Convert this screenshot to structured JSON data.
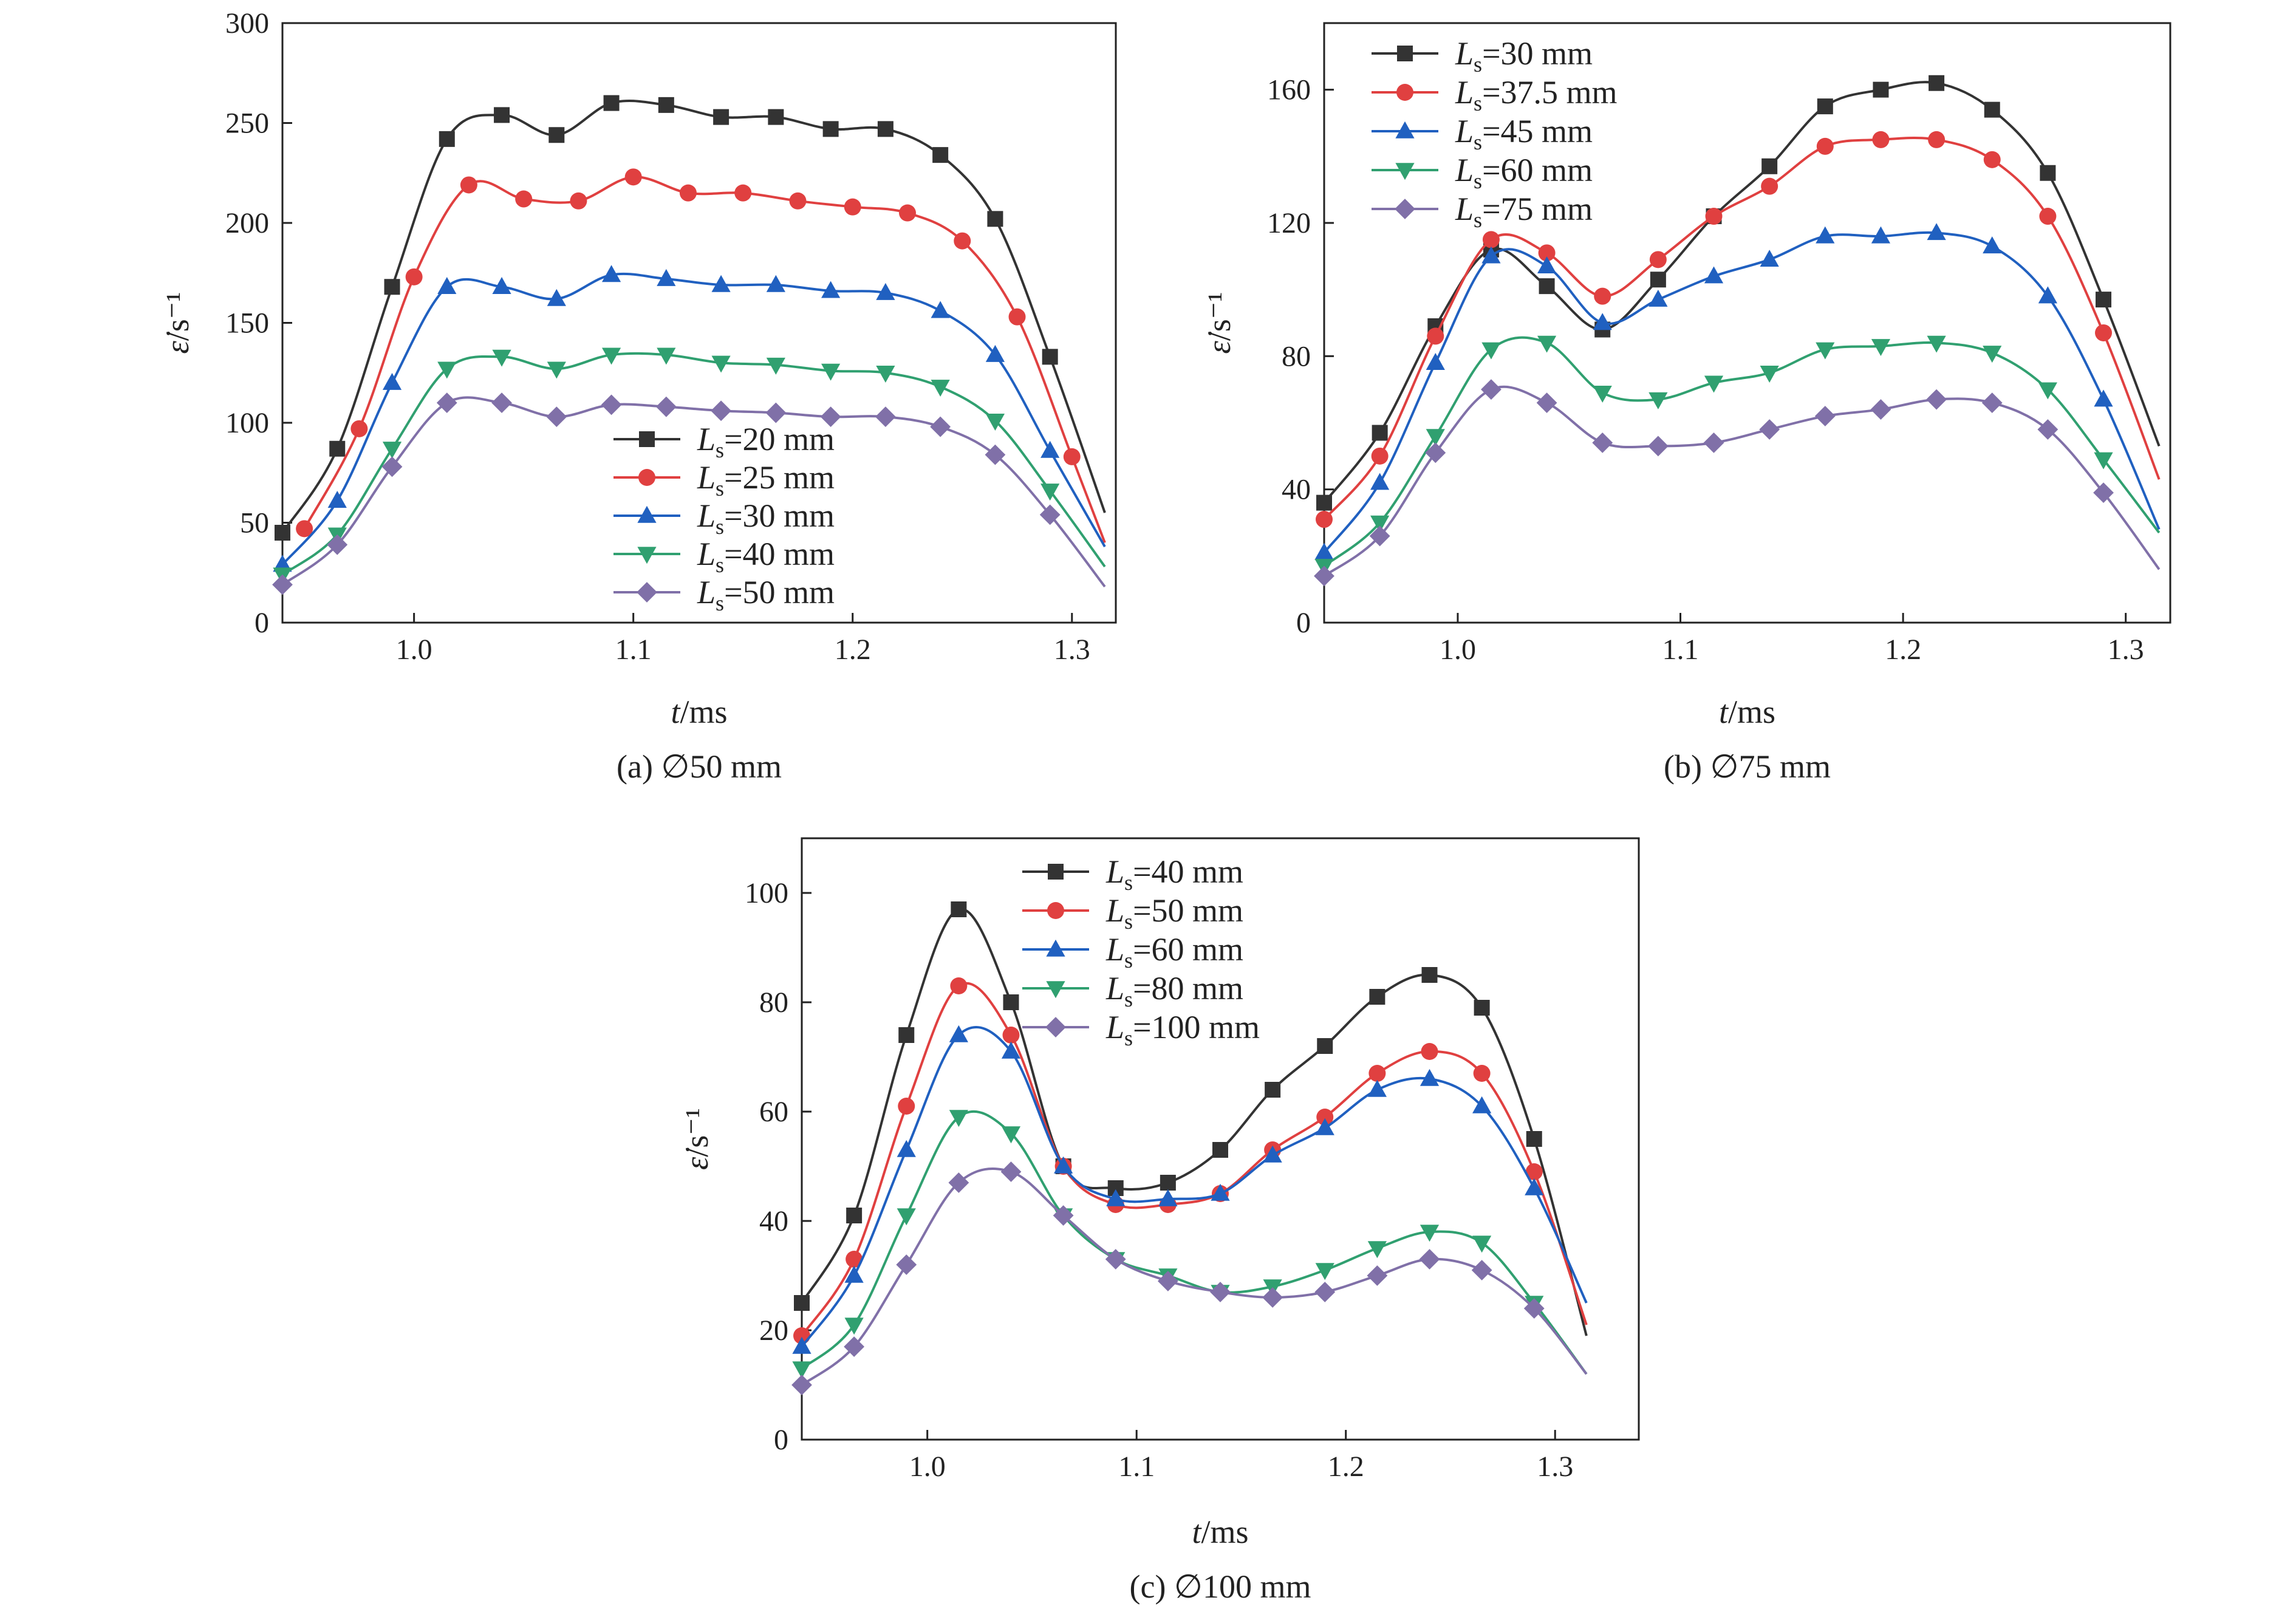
{
  "chart_data": [
    {
      "type": "line",
      "caption": "(a) ∅50 mm",
      "xlabel": "t/ms",
      "ylabel": "ε̇/s⁻¹",
      "xlim": [
        0.94,
        1.32
      ],
      "ylim": [
        0,
        300
      ],
      "xticks": [
        1.0,
        1.1,
        1.2,
        1.3
      ],
      "yticks": [
        0,
        50,
        100,
        150,
        200,
        250,
        300
      ],
      "legend": "center-bottom",
      "series": [
        {
          "name": "Ls=20 mm",
          "marker": "square",
          "color": "#333333",
          "x": [
            0.94,
            0.965,
            0.99,
            1.015,
            1.04,
            1.065,
            1.09,
            1.115,
            1.14,
            1.165,
            1.19,
            1.215,
            1.24,
            1.265,
            1.29,
            1.315
          ],
          "y": [
            45,
            87,
            168,
            242,
            254,
            244,
            260,
            259,
            253,
            253,
            247,
            247,
            234,
            202,
            133,
            55
          ]
        },
        {
          "name": "Ls=25 mm",
          "marker": "circle",
          "color": "#e04040",
          "x": [
            0.95,
            0.975,
            1.0,
            1.025,
            1.05,
            1.075,
            1.1,
            1.125,
            1.15,
            1.175,
            1.2,
            1.225,
            1.25,
            1.275,
            1.3,
            1.315
          ],
          "y": [
            47,
            97,
            173,
            219,
            212,
            211,
            223,
            215,
            215,
            211,
            208,
            205,
            191,
            153,
            83,
            40
          ]
        },
        {
          "name": "Ls=30 mm",
          "marker": "triangle-up",
          "color": "#2060c0",
          "x": [
            0.94,
            0.965,
            0.99,
            1.015,
            1.04,
            1.065,
            1.09,
            1.115,
            1.14,
            1.165,
            1.19,
            1.215,
            1.24,
            1.265,
            1.29,
            1.315
          ],
          "y": [
            29,
            61,
            120,
            168,
            168,
            162,
            174,
            172,
            169,
            169,
            166,
            165,
            156,
            134,
            86,
            38
          ]
        },
        {
          "name": "Ls=40 mm",
          "marker": "triangle-down",
          "color": "#30a070",
          "x": [
            0.94,
            0.965,
            0.99,
            1.015,
            1.04,
            1.065,
            1.09,
            1.115,
            1.14,
            1.165,
            1.19,
            1.215,
            1.24,
            1.265,
            1.29,
            1.315
          ],
          "y": [
            24,
            44,
            87,
            127,
            133,
            127,
            134,
            134,
            130,
            129,
            126,
            125,
            118,
            101,
            66,
            28
          ]
        },
        {
          "name": "Ls=50 mm",
          "marker": "diamond",
          "color": "#8070a8",
          "x": [
            0.94,
            0.965,
            0.99,
            1.015,
            1.04,
            1.065,
            1.09,
            1.115,
            1.14,
            1.165,
            1.19,
            1.215,
            1.24,
            1.265,
            1.29,
            1.315
          ],
          "y": [
            19,
            39,
            78,
            110,
            110,
            103,
            109,
            108,
            106,
            105,
            103,
            103,
            98,
            84,
            54,
            18
          ]
        }
      ]
    },
    {
      "type": "line",
      "caption": "(b) ∅75 mm",
      "xlabel": "t/ms",
      "ylabel": "ε̇/s⁻¹",
      "xlim": [
        0.94,
        1.32
      ],
      "ylim": [
        0,
        180
      ],
      "xticks": [
        1.0,
        1.1,
        1.2,
        1.3
      ],
      "yticks": [
        0,
        40,
        80,
        120,
        160
      ],
      "legend": "top-left",
      "series": [
        {
          "name": "Ls=30 mm",
          "marker": "square",
          "color": "#333333",
          "x": [
            0.94,
            0.965,
            0.99,
            1.015,
            1.04,
            1.065,
            1.09,
            1.115,
            1.14,
            1.165,
            1.19,
            1.215,
            1.24,
            1.265,
            1.29,
            1.315
          ],
          "y": [
            36,
            57,
            89,
            112,
            101,
            88,
            103,
            122,
            137,
            155,
            160,
            162,
            154,
            135,
            97,
            53
          ]
        },
        {
          "name": "Ls=37.5 mm",
          "marker": "circle",
          "color": "#e04040",
          "x": [
            0.94,
            0.965,
            0.99,
            1.015,
            1.04,
            1.065,
            1.09,
            1.115,
            1.14,
            1.165,
            1.19,
            1.215,
            1.24,
            1.265,
            1.29,
            1.315
          ],
          "y": [
            31,
            50,
            86,
            115,
            111,
            98,
            109,
            122,
            131,
            143,
            145,
            145,
            139,
            122,
            87,
            43
          ]
        },
        {
          "name": "Ls=45 mm",
          "marker": "triangle-up",
          "color": "#2060c0",
          "x": [
            0.94,
            0.965,
            0.99,
            1.015,
            1.04,
            1.065,
            1.09,
            1.115,
            1.14,
            1.165,
            1.19,
            1.215,
            1.24,
            1.265,
            1.29,
            1.315
          ],
          "y": [
            21,
            42,
            78,
            110,
            107,
            90,
            97,
            104,
            109,
            116,
            116,
            117,
            113,
            98,
            67,
            28
          ]
        },
        {
          "name": "Ls=60 mm",
          "marker": "triangle-down",
          "color": "#30a070",
          "x": [
            0.94,
            0.965,
            0.99,
            1.015,
            1.04,
            1.065,
            1.09,
            1.115,
            1.14,
            1.165,
            1.19,
            1.215,
            1.24,
            1.265,
            1.29,
            1.315
          ],
          "y": [
            17,
            30,
            56,
            82,
            84,
            69,
            67,
            72,
            75,
            82,
            83,
            84,
            81,
            70,
            49,
            27
          ]
        },
        {
          "name": "Ls=75 mm",
          "marker": "diamond",
          "color": "#8070a8",
          "x": [
            0.94,
            0.965,
            0.99,
            1.015,
            1.04,
            1.065,
            1.09,
            1.115,
            1.14,
            1.165,
            1.19,
            1.215,
            1.24,
            1.265,
            1.29,
            1.315
          ],
          "y": [
            14,
            26,
            51,
            70,
            66,
            54,
            53,
            54,
            58,
            62,
            64,
            67,
            66,
            58,
            39,
            16
          ]
        }
      ]
    },
    {
      "type": "line",
      "caption": "(c) ∅100 mm",
      "xlabel": "t/ms",
      "ylabel": "ε̇/s⁻¹",
      "xlim": [
        0.94,
        1.34
      ],
      "ylim": [
        0,
        110
      ],
      "xticks": [
        1.0,
        1.1,
        1.2,
        1.3
      ],
      "yticks": [
        0,
        20,
        40,
        60,
        80,
        100
      ],
      "legend": "top-center",
      "series": [
        {
          "name": "Ls=40 mm",
          "marker": "square",
          "color": "#333333",
          "x": [
            0.94,
            0.965,
            0.99,
            1.015,
            1.04,
            1.065,
            1.09,
            1.115,
            1.14,
            1.165,
            1.19,
            1.215,
            1.24,
            1.265,
            1.29,
            1.315
          ],
          "y": [
            25,
            41,
            74,
            97,
            80,
            50,
            46,
            47,
            53,
            64,
            72,
            81,
            85,
            79,
            55,
            19
          ]
        },
        {
          "name": "Ls=50 mm",
          "marker": "circle",
          "color": "#e04040",
          "x": [
            0.94,
            0.965,
            0.99,
            1.015,
            1.04,
            1.065,
            1.09,
            1.115,
            1.14,
            1.165,
            1.19,
            1.215,
            1.24,
            1.265,
            1.29,
            1.315
          ],
          "y": [
            19,
            33,
            61,
            83,
            74,
            50,
            43,
            43,
            45,
            53,
            59,
            67,
            71,
            67,
            49,
            21
          ]
        },
        {
          "name": "Ls=60 mm",
          "marker": "triangle-up",
          "color": "#2060c0",
          "x": [
            0.94,
            0.965,
            0.99,
            1.015,
            1.04,
            1.065,
            1.09,
            1.115,
            1.14,
            1.165,
            1.19,
            1.215,
            1.24,
            1.265,
            1.29,
            1.315
          ],
          "y": [
            17,
            30,
            53,
            74,
            71,
            50,
            44,
            44,
            45,
            52,
            57,
            64,
            66,
            61,
            46,
            25
          ]
        },
        {
          "name": "Ls=80 mm",
          "marker": "triangle-down",
          "color": "#30a070",
          "x": [
            0.94,
            0.965,
            0.99,
            1.015,
            1.04,
            1.065,
            1.09,
            1.115,
            1.14,
            1.165,
            1.19,
            1.215,
            1.24,
            1.265,
            1.29,
            1.315
          ],
          "y": [
            13,
            21,
            41,
            59,
            56,
            41,
            33,
            30,
            27,
            28,
            31,
            35,
            38,
            36,
            25,
            12
          ]
        },
        {
          "name": "Ls=100 mm",
          "marker": "diamond",
          "color": "#8070a8",
          "x": [
            0.94,
            0.965,
            0.99,
            1.015,
            1.04,
            1.065,
            1.09,
            1.115,
            1.14,
            1.165,
            1.19,
            1.215,
            1.24,
            1.265,
            1.29,
            1.315
          ],
          "y": [
            10,
            17,
            32,
            47,
            49,
            41,
            33,
            29,
            27,
            26,
            27,
            30,
            33,
            31,
            24,
            12
          ]
        }
      ]
    }
  ]
}
